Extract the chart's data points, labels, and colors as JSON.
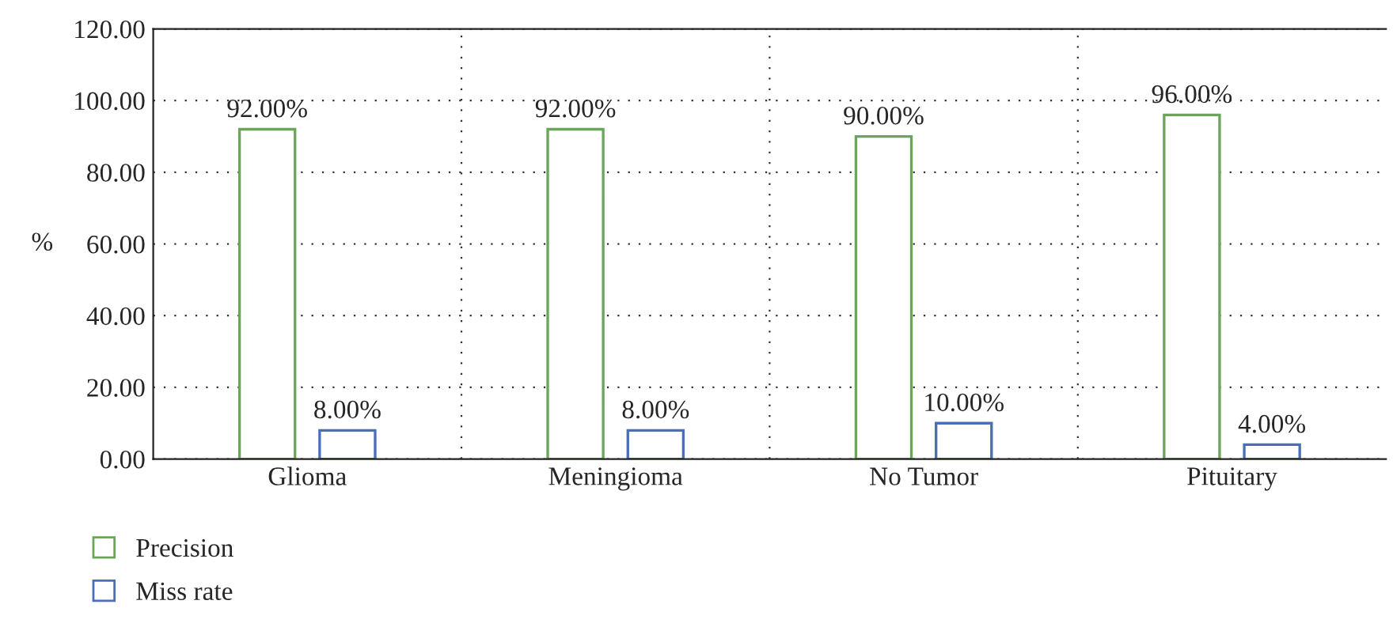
{
  "chart_data": {
    "type": "bar",
    "ylabel": "%",
    "categories": [
      "Glioma",
      "Meningioma",
      "No Tumor",
      "Pituitary"
    ],
    "series": [
      {
        "name": "Precision",
        "color": "#6aa55a",
        "values": [
          92,
          92,
          90,
          96
        ],
        "value_labels": [
          "92.00%",
          "92.00%",
          "90.00%",
          "96.00%"
        ]
      },
      {
        "name": "Miss rate",
        "color": "#4a6fb8",
        "values": [
          8,
          8,
          10,
          4
        ],
        "value_labels": [
          "8.00%",
          "8.00%",
          "10.00%",
          "4.00%"
        ]
      }
    ],
    "ylim": [
      0,
      120
    ],
    "yticks": [
      {
        "value": 0,
        "label": "0.00"
      },
      {
        "value": 20,
        "label": "20.00"
      },
      {
        "value": 40,
        "label": "40.00"
      },
      {
        "value": 60,
        "label": "60.00"
      },
      {
        "value": 80,
        "label": "80.00"
      },
      {
        "value": 100,
        "label": "100.00"
      },
      {
        "value": 120,
        "label": "120.00"
      }
    ],
    "grid": true,
    "legend": "bottom left"
  }
}
